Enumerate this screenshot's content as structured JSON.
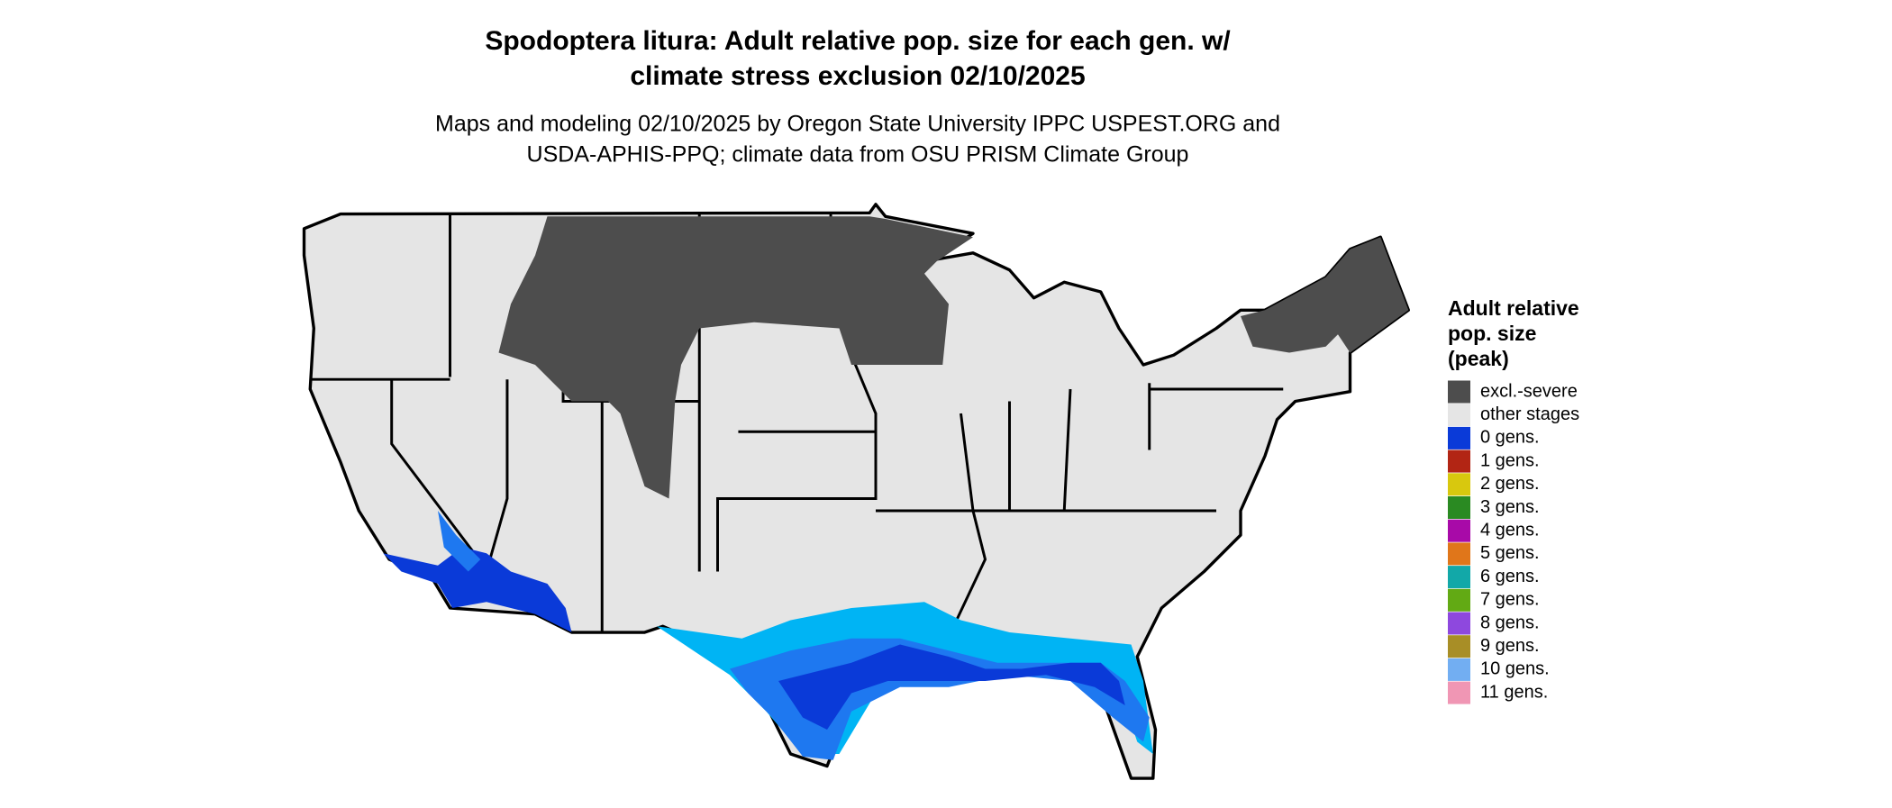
{
  "header": {
    "title_lines": [
      "Spodoptera litura: Adult relative pop. size for each gen. w/",
      "climate stress exclusion 02/10/2025"
    ],
    "subtitle_lines": [
      "Maps and modeling 02/10/2025 by Oregon State University IPPC USPEST.ORG and",
      "USDA-APHIS-PPQ; climate data from OSU PRISM Climate Group"
    ]
  },
  "legend": {
    "title_lines": [
      "Adult relative",
      "pop. size",
      "(peak)"
    ],
    "items": [
      {
        "label": "excl.-severe",
        "color": "#4d4d4d"
      },
      {
        "label": "other stages",
        "color": "#e5e5e5"
      },
      {
        "label": "0 gens.",
        "color": "#0a3ad8"
      },
      {
        "label": "1 gens.",
        "color": "#b22514"
      },
      {
        "label": "2 gens.",
        "color": "#d8c80e"
      },
      {
        "label": "3 gens.",
        "color": "#2a8a22"
      },
      {
        "label": "4 gens.",
        "color": "#a80aa8"
      },
      {
        "label": "5 gens.",
        "color": "#e0761a"
      },
      {
        "label": "6 gens.",
        "color": "#12a8a8"
      },
      {
        "label": "7 gens.",
        "color": "#62aa14"
      },
      {
        "label": "8 gens.",
        "color": "#8e48de"
      },
      {
        "label": "9 gens.",
        "color": "#a88e26"
      },
      {
        "label": "10 gens.",
        "color": "#72aef2"
      },
      {
        "label": "11 gens.",
        "color": "#f096b4"
      }
    ]
  }
}
